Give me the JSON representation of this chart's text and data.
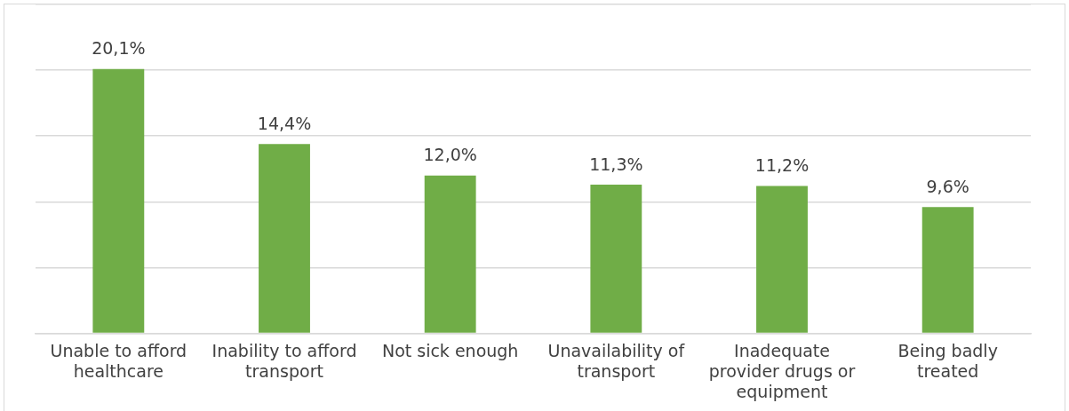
{
  "chart_data": {
    "type": "bar",
    "categories": [
      "Unable to afford healthcare",
      "Inability to afford transport",
      "Not sick enough",
      "Unavailability of transport",
      "Inadequate provider drugs or equipment",
      "Being badly treated"
    ],
    "values": [
      20.1,
      14.4,
      12.0,
      11.3,
      11.2,
      9.6
    ],
    "value_labels": [
      "20,1%",
      "14,4%",
      "12,0%",
      "11,3%",
      "11,2%",
      "9,6%"
    ],
    "color": "#70ad47",
    "ylim": [
      0,
      25
    ],
    "yticks": [
      {
        "value": 0,
        "label": null
      },
      {
        "value": 5,
        "label": null
      },
      {
        "value": 10,
        "label": null
      },
      {
        "value": 15,
        "label": null
      },
      {
        "value": 20,
        "label": null
      },
      {
        "value": 25,
        "label": null
      }
    ],
    "grid": "y",
    "tick_labels": "x",
    "legend": false
  }
}
